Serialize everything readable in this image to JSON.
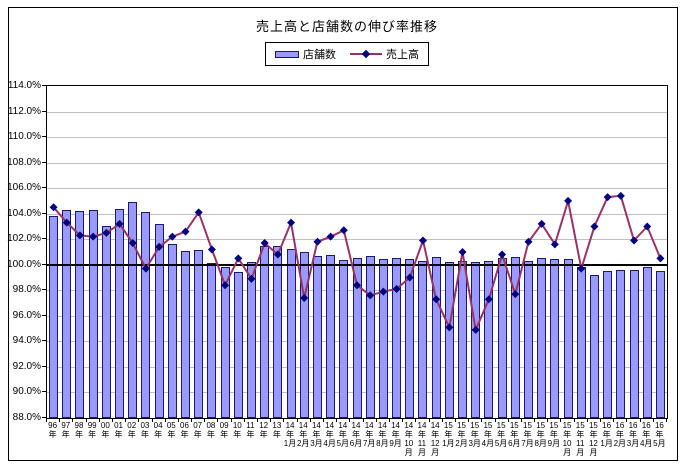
{
  "colors": {
    "background": "#ffffff",
    "bar_fill": "#9999ff",
    "bar_border": "#1a1a66",
    "line": "#993366",
    "marker": "#000080",
    "grid": "#c0c0c0",
    "axis": "#000000",
    "hundred_line": "#000000"
  },
  "chart_data": {
    "type": "bar+line",
    "title": "売上高と店舗数の伸び率推移",
    "legend_position": "top",
    "grid": true,
    "ylim": [
      88,
      114
    ],
    "categories": [
      "96年",
      "97年",
      "98年",
      "99年",
      "00年",
      "01年",
      "02年",
      "03年",
      "04年",
      "05年",
      "06年",
      "07年",
      "08年",
      "09年",
      "10年",
      "11年",
      "12年",
      "13年",
      "14年1月",
      "14年2月",
      "14年3月",
      "14年4月",
      "14年5月",
      "14年6月",
      "14年7月",
      "14年8月",
      "14年9月",
      "14年10月",
      "14年11月",
      "14年12月",
      "15年1月",
      "15年2月",
      "15年3月",
      "15年4月",
      "15年5月",
      "15年6月",
      "15年7月",
      "15年8月",
      "15年9月",
      "15年10月",
      "15年11月",
      "15年12月",
      "16年1月",
      "16年2月",
      "16年3月",
      "16年4月",
      "16年5月"
    ],
    "series": [
      {
        "name": "店舗数",
        "type": "bar",
        "values": [
          103.8,
          104.3,
          104.25,
          104.3,
          103.0,
          104.4,
          104.9,
          104.1,
          103.2,
          101.6,
          101.1,
          101.15,
          100.1,
          99.8,
          99.4,
          100.25,
          101.5,
          101.45,
          101.25,
          101.0,
          100.7,
          100.75,
          100.35,
          100.5,
          100.7,
          100.45,
          100.5,
          100.45,
          100.3,
          100.6,
          100.2,
          100.3,
          100.2,
          100.3,
          100.5,
          100.6,
          100.3,
          100.5,
          100.45,
          100.45,
          99.8,
          99.2,
          99.5,
          99.6,
          99.6,
          99.8,
          99.5
        ]
      },
      {
        "name": "売上高",
        "type": "line",
        "values": [
          104.5,
          103.3,
          102.3,
          102.2,
          102.5,
          103.2,
          101.7,
          99.7,
          101.4,
          102.2,
          102.6,
          104.1,
          101.2,
          98.4,
          100.5,
          98.9,
          101.7,
          100.8,
          103.3,
          97.4,
          101.8,
          102.2,
          102.7,
          98.4,
          97.6,
          97.9,
          98.1,
          99.0,
          101.9,
          97.3,
          95.1,
          101.0,
          94.9,
          97.3,
          100.8,
          97.7,
          101.8,
          103.2,
          101.6,
          105.0,
          99.7,
          103.0,
          105.3,
          105.4,
          101.9,
          103.0,
          100.5
        ]
      }
    ],
    "y_axis": {
      "min": 88,
      "max": 114,
      "step": 2,
      "emphasis_line": 100,
      "labels": [
        "114.0%",
        "112.0%",
        "110.0%",
        "108.0%",
        "106.0%",
        "104.0%",
        "102.0%",
        "100.0%",
        "98.0%",
        "96.0%",
        "94.0%",
        "92.0%",
        "90.0%",
        "88.0%"
      ]
    },
    "x_axis": {
      "label_lines": [
        [
          "96",
          "年"
        ],
        [
          "97",
          "年"
        ],
        [
          "98",
          "年"
        ],
        [
          "99",
          "年"
        ],
        [
          "00",
          "年"
        ],
        [
          "01",
          "年"
        ],
        [
          "02",
          "年"
        ],
        [
          "03",
          "年"
        ],
        [
          "04",
          "年"
        ],
        [
          "05",
          "年"
        ],
        [
          "06",
          "年"
        ],
        [
          "07",
          "年"
        ],
        [
          "08",
          "年"
        ],
        [
          "09",
          "年"
        ],
        [
          "10",
          "年"
        ],
        [
          "11",
          "年"
        ],
        [
          "12",
          "年"
        ],
        [
          "13",
          "年"
        ],
        [
          "14",
          "年",
          "1月"
        ],
        [
          "14",
          "年",
          "2月"
        ],
        [
          "14",
          "年",
          "3月"
        ],
        [
          "14",
          "年",
          "4月"
        ],
        [
          "14",
          "年",
          "5月"
        ],
        [
          "14",
          "年",
          "6月"
        ],
        [
          "14",
          "年",
          "7月"
        ],
        [
          "14",
          "年",
          "8月"
        ],
        [
          "14",
          "年",
          "9月"
        ],
        [
          "14",
          "年",
          "10",
          "月"
        ],
        [
          "14",
          "年",
          "11",
          "月"
        ],
        [
          "14",
          "年",
          "12",
          "月"
        ],
        [
          "15",
          "年",
          "1月"
        ],
        [
          "15",
          "年",
          "2月"
        ],
        [
          "15",
          "年",
          "3月"
        ],
        [
          "15",
          "年",
          "4月"
        ],
        [
          "15",
          "年",
          "5月"
        ],
        [
          "15",
          "年",
          "6月"
        ],
        [
          "15",
          "年",
          "7月"
        ],
        [
          "15",
          "年",
          "8月"
        ],
        [
          "15",
          "年",
          "9月"
        ],
        [
          "15",
          "年",
          "10",
          "月"
        ],
        [
          "15",
          "年",
          "11",
          "月"
        ],
        [
          "15",
          "年",
          "12",
          "月"
        ],
        [
          "16",
          "年",
          "1月"
        ],
        [
          "16",
          "年",
          "2月"
        ],
        [
          "16",
          "年",
          "3月"
        ],
        [
          "16",
          "年",
          "4月"
        ],
        [
          "16",
          "年",
          "5月"
        ]
      ]
    }
  }
}
